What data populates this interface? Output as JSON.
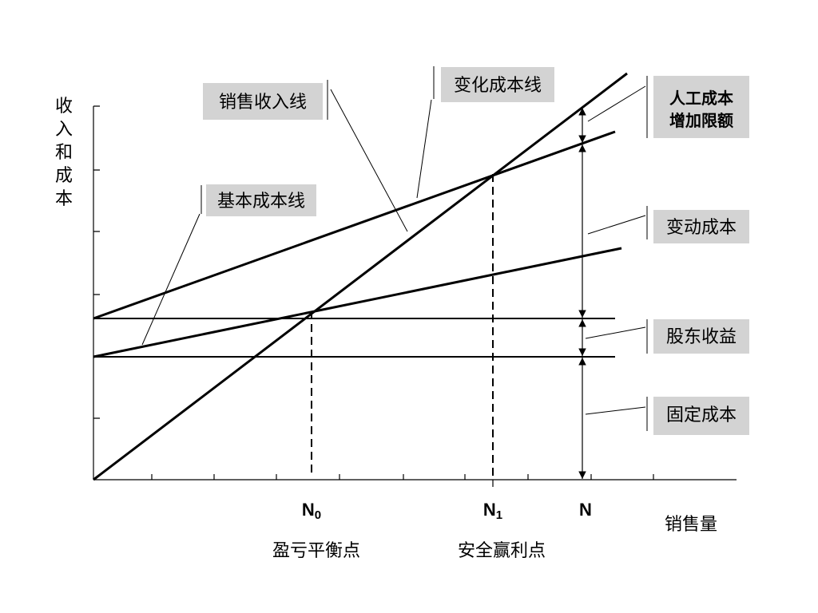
{
  "y_axis_label": "收入和成本",
  "x_axis_label": "销售量",
  "markers": [
    {
      "main": "N",
      "sub": "0",
      "caption": "盈亏平衡点"
    },
    {
      "main": "N",
      "sub": "1",
      "caption": "安全赢利点"
    },
    {
      "main": "N"
    }
  ],
  "line_labels": {
    "sales": "销售收入线",
    "variable": "变化成本线",
    "base": "基本成本线"
  },
  "segments": {
    "labor": [
      "人工成本",
      "增加限额"
    ],
    "variable_cost": "变动成本",
    "shareholder": "股东收益",
    "fixed_cost": "固定成本"
  }
}
